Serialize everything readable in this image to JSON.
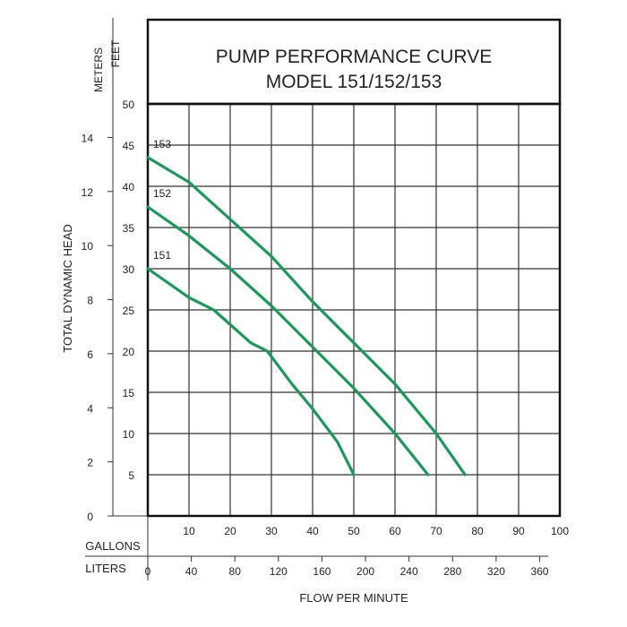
{
  "chart_data": {
    "type": "line",
    "title_line1": "PUMP PERFORMANCE CURVE",
    "title_line2": "MODEL 151/152/153",
    "ylabel": "TOTAL DYNAMIC HEAD",
    "xlabel": "FLOW PER MINUTE",
    "meters_label": "METERS",
    "feet_label": "FEET",
    "gallons_label": "GALLONS",
    "liters_label": "LITERS",
    "xlim": [
      0,
      100
    ],
    "ylim": [
      0,
      50
    ],
    "feet_ticks": [
      "5",
      "10",
      "15",
      "20",
      "25",
      "30",
      "35",
      "40",
      "45",
      "50"
    ],
    "meter_ticks": [
      "0",
      "2",
      "4",
      "6",
      "8",
      "10",
      "12",
      "14"
    ],
    "gallon_ticks": [
      "10",
      "20",
      "30",
      "40",
      "50",
      "60",
      "70",
      "80",
      "90",
      "100"
    ],
    "liter_ticks": [
      "0",
      "40",
      "80",
      "120",
      "160",
      "200",
      "240",
      "280",
      "320",
      "360"
    ],
    "grid": true,
    "line_color": "#1a9a5a",
    "series": [
      {
        "name": "151",
        "x": [
          0,
          10,
          16,
          25,
          29,
          35,
          40,
          46,
          50
        ],
        "y": [
          30,
          26.5,
          25,
          21,
          20,
          16,
          13,
          9,
          5
        ]
      },
      {
        "name": "152",
        "x": [
          0,
          10,
          20,
          30,
          40,
          50,
          60,
          68
        ],
        "y": [
          37.5,
          34,
          30,
          25.5,
          20.5,
          15.5,
          10,
          5
        ]
      },
      {
        "name": "153",
        "x": [
          0,
          10,
          20,
          30,
          40,
          50,
          60,
          70,
          77
        ],
        "y": [
          43.5,
          40.5,
          36,
          31.5,
          26,
          21,
          16,
          10,
          5
        ]
      }
    ]
  }
}
